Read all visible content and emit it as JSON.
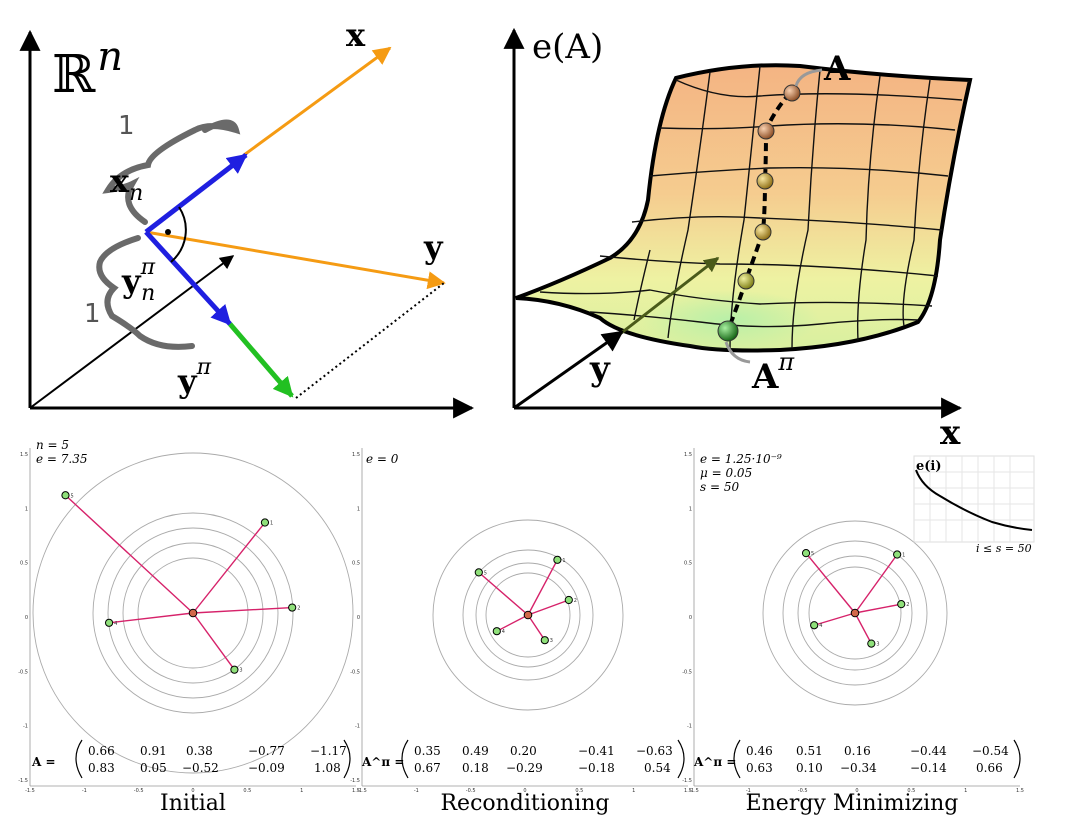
{
  "top_left": {
    "space_label": "ℝ",
    "space_exp": "n",
    "x_label": "x",
    "y_label": "y",
    "xn_base": "x",
    "xn_sub": "n",
    "ynpi_base": "y",
    "ynpi_sup": "π",
    "ynpi_sub": "n",
    "ypi_base": "y",
    "ypi_sup": "π",
    "brace_label_1": "1",
    "brace_label_2": "1"
  },
  "top_right": {
    "axis_e_label": "e(A)",
    "axis_x_label": "x",
    "axis_y_label": "y",
    "start_label": "A",
    "end_base": "A",
    "end_sup": "π"
  },
  "panels": [
    {
      "caption": "Initial",
      "info": [
        "n = 5",
        "e = 7.35"
      ],
      "matrix_label": "A =",
      "matrix": [
        [
          "0.66",
          "0.91",
          "0.38",
          "−0.77",
          "−1.17"
        ],
        [
          "0.83",
          "0.05",
          "−0.52",
          "−0.09",
          "1.08"
        ]
      ],
      "points": [
        {
          "x": 0.66,
          "y": 0.83,
          "label": "1"
        },
        {
          "x": 0.91,
          "y": 0.05,
          "label": "2"
        },
        {
          "x": 0.38,
          "y": -0.52,
          "label": "3"
        },
        {
          "x": -0.77,
          "y": -0.09,
          "label": "4"
        },
        {
          "x": -1.17,
          "y": 1.08,
          "label": "5"
        }
      ],
      "yticks": [
        "1.5",
        "1",
        "0.5",
        "0",
        "-0.5",
        "-1",
        "-1.5"
      ],
      "xticks": [
        "-1.5",
        "-1",
        "-0.5",
        "0",
        "0.5",
        "1",
        "1.5"
      ]
    },
    {
      "caption": "Reconditioning",
      "info": [
        "e = 0"
      ],
      "matrix_label": "A^π =",
      "matrix": [
        [
          "0.35",
          "0.49",
          "0.20",
          "−0.41",
          "−0.63"
        ],
        [
          "0.67",
          "0.18",
          "−0.29",
          "−0.18",
          "0.54"
        ]
      ],
      "points": [
        {
          "x": 0.49,
          "y": 0.92,
          "label": "1"
        },
        {
          "x": 0.68,
          "y": 0.25,
          "label": "2"
        },
        {
          "x": 0.28,
          "y": -0.42,
          "label": "3"
        },
        {
          "x": -0.52,
          "y": -0.27,
          "label": "4"
        },
        {
          "x": -0.82,
          "y": 0.71,
          "label": "5"
        }
      ],
      "yticks": [
        "1.5",
        "1",
        "0.5",
        "0",
        "-0.5",
        "-1",
        "-1.5"
      ],
      "xticks": [
        "-1.5",
        "-1",
        "-0.5",
        "0",
        "0.5",
        "1",
        "1.5"
      ]
    },
    {
      "caption": "Energy Minimizing",
      "info": [
        "e = 1.25·10⁻⁹",
        "μ = 0.05",
        "s = 50"
      ],
      "matrix_label": "A^π =",
      "matrix": [
        [
          "0.46",
          "0.51",
          "0.16",
          "−0.44",
          "−0.54"
        ],
        [
          "0.63",
          "0.10",
          "−0.34",
          "−0.14",
          "0.66"
        ]
      ],
      "points": [
        {
          "x": 0.62,
          "y": 0.86,
          "label": "1"
        },
        {
          "x": 0.68,
          "y": 0.13,
          "label": "2"
        },
        {
          "x": 0.24,
          "y": -0.45,
          "label": "3"
        },
        {
          "x": -0.6,
          "y": -0.18,
          "label": "4"
        },
        {
          "x": -0.72,
          "y": 0.88,
          "label": "5"
        }
      ],
      "yticks": [
        "1.5",
        "1",
        "0.5",
        "0",
        "-0.5",
        "-1",
        "-1.5"
      ],
      "xticks": [
        "-1.5",
        "-1",
        "-0.5",
        "0",
        "0.5",
        "1",
        "1.5"
      ],
      "inset_title": "e(i)",
      "inset_xlabel": "i ≤ s = 50"
    }
  ]
}
